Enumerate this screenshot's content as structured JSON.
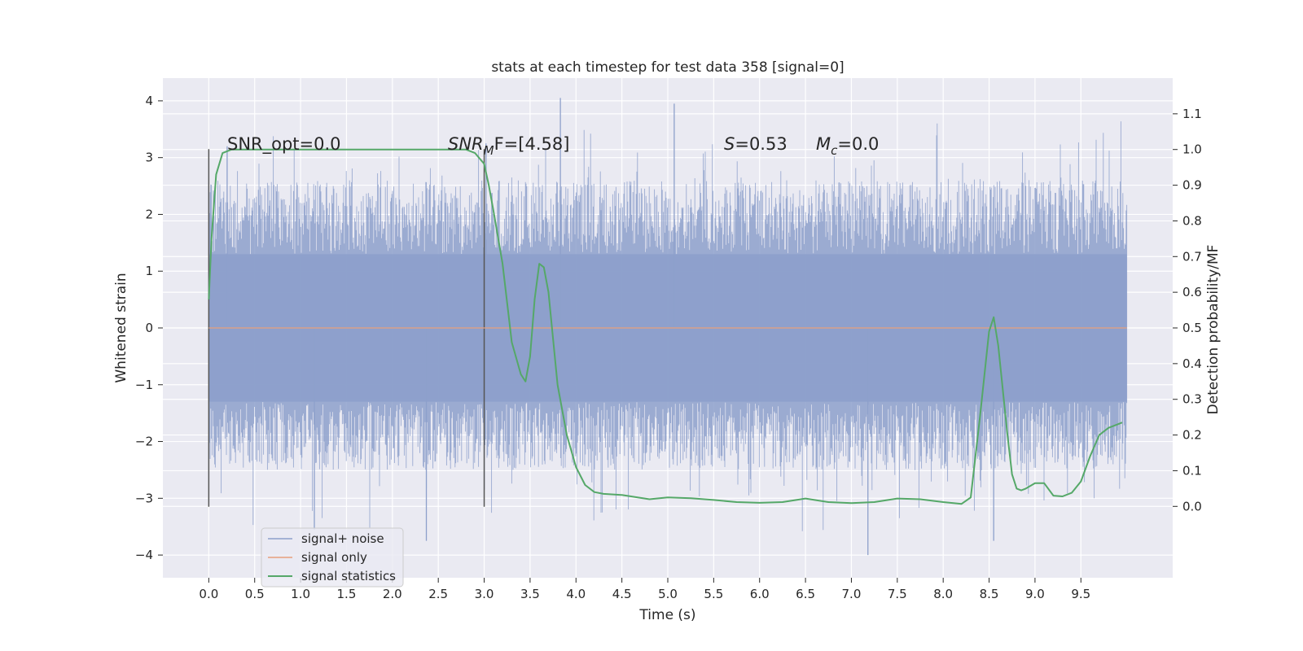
{
  "chart_data": {
    "type": "line",
    "title": "stats at each timestep for test data 358 [signal=0]",
    "xlabel": "Time (s)",
    "ylabel_left": "Whitened strain",
    "ylabel_right": "Detection probability/MF",
    "xlim": [
      -0.5,
      10.5
    ],
    "ylim_left": [
      -4.4,
      4.4
    ],
    "ylim_right": [
      -0.2,
      1.2
    ],
    "x_ticks": [
      0.0,
      0.5,
      1.0,
      1.5,
      2.0,
      2.5,
      3.0,
      3.5,
      4.0,
      4.5,
      5.0,
      5.5,
      6.0,
      6.5,
      7.0,
      7.5,
      8.0,
      8.5,
      9.0,
      9.5
    ],
    "x_tick_labels": [
      "0.0",
      "0.5",
      "1.0",
      "1.5",
      "2.0",
      "2.5",
      "3.0",
      "3.5",
      "4.0",
      "4.5",
      "5.0",
      "5.5",
      "6.0",
      "6.5",
      "7.0",
      "7.5",
      "8.0",
      "8.5",
      "9.0",
      "9.5"
    ],
    "y_ticks_left": [
      -4,
      -3,
      -2,
      -1,
      0,
      1,
      2,
      3,
      4
    ],
    "y_tick_labels_left": [
      "−4",
      "−3",
      "−2",
      "−1",
      "0",
      "1",
      "2",
      "3",
      "4"
    ],
    "y_ticks_right": [
      0.0,
      0.1,
      0.2,
      0.3,
      0.4,
      0.5,
      0.6,
      0.7,
      0.8,
      0.9,
      1.0,
      1.1
    ],
    "y_tick_labels_right": [
      "0.0",
      "0.1",
      "0.2",
      "0.3",
      "0.4",
      "0.5",
      "0.6",
      "0.7",
      "0.8",
      "0.9",
      "1.0",
      "1.1"
    ],
    "grid": true,
    "legend_position": "lower-left",
    "legend": [
      {
        "label": "signal+ noise",
        "color": "#8da0cb"
      },
      {
        "label": "signal only",
        "color": "#e8a07c"
      },
      {
        "label": "signal statistics",
        "color": "#55a868"
      }
    ],
    "annotations": {
      "snr_opt": "SNR_opt=0.0",
      "snr_mf_base": "SNR",
      "snr_mf_sub": "M",
      "snr_mf_rest": "F=[4.58]",
      "s_base": "S",
      "s_rest": "=0.53",
      "mc_base": "M",
      "mc_sub": "c",
      "mc_rest": "=0.0"
    },
    "vlines": [
      {
        "x": 0.0,
        "y_range": [
          -3.15,
          3.15
        ]
      },
      {
        "x": 3.0,
        "y_range": [
          -3.15,
          3.15
        ]
      }
    ],
    "noise_series": {
      "name": "signal+ noise",
      "color": "#8da0cb",
      "x_range": [
        0.0,
        10.0
      ],
      "core_band": [
        -1.3,
        1.3
      ],
      "typical_extent": [
        -2.5,
        2.6
      ],
      "peak_max": 4.05,
      "peak_min": -4.0
    },
    "signal_series": {
      "name": "signal only",
      "color": "#e8a07c",
      "x": [
        0.0,
        10.0
      ],
      "y": [
        0.0,
        0.0
      ]
    },
    "stats_series": {
      "name": "signal statistics",
      "color": "#55a868",
      "x": [
        0.0,
        0.03,
        0.08,
        0.15,
        0.25,
        0.5,
        1.0,
        1.5,
        2.0,
        2.5,
        2.8,
        2.9,
        3.0,
        3.05,
        3.1,
        3.2,
        3.3,
        3.4,
        3.45,
        3.5,
        3.55,
        3.6,
        3.65,
        3.7,
        3.75,
        3.8,
        3.9,
        4.0,
        4.1,
        4.2,
        4.3,
        4.5,
        4.8,
        5.0,
        5.25,
        5.5,
        5.75,
        6.0,
        6.25,
        6.5,
        6.75,
        7.0,
        7.25,
        7.5,
        7.75,
        8.0,
        8.2,
        8.3,
        8.4,
        8.5,
        8.55,
        8.6,
        8.7,
        8.75,
        8.8,
        8.85,
        8.9,
        9.0,
        9.1,
        9.2,
        9.3,
        9.4,
        9.5,
        9.6,
        9.7,
        9.8,
        9.9,
        9.95
      ],
      "y": [
        0.58,
        0.75,
        0.93,
        0.99,
        1.0,
        1.0,
        1.0,
        1.0,
        1.0,
        1.0,
        1.0,
        0.99,
        0.96,
        0.9,
        0.83,
        0.68,
        0.46,
        0.37,
        0.35,
        0.42,
        0.58,
        0.68,
        0.67,
        0.6,
        0.47,
        0.34,
        0.2,
        0.11,
        0.06,
        0.04,
        0.035,
        0.032,
        0.02,
        0.025,
        0.023,
        0.018,
        0.012,
        0.01,
        0.012,
        0.022,
        0.012,
        0.009,
        0.012,
        0.022,
        0.02,
        0.012,
        0.007,
        0.025,
        0.25,
        0.49,
        0.53,
        0.45,
        0.2,
        0.09,
        0.05,
        0.045,
        0.05,
        0.065,
        0.065,
        0.03,
        0.028,
        0.038,
        0.07,
        0.14,
        0.2,
        0.22,
        0.23,
        0.235
      ]
    }
  }
}
